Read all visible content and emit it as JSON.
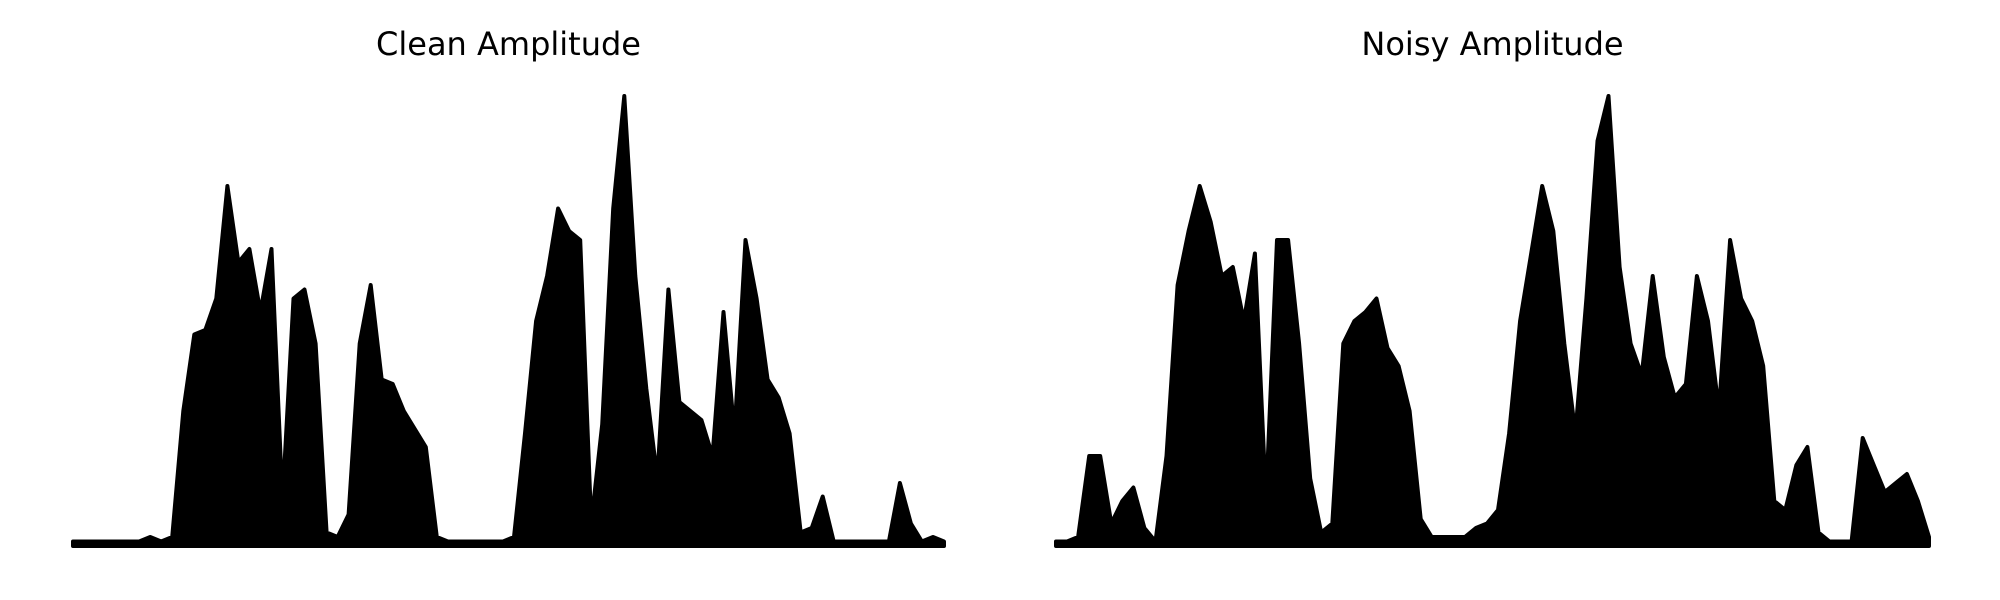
{
  "chart_data": [
    {
      "type": "area",
      "title": "Clean Amplitude",
      "color": "#000000",
      "ylim": [
        0,
        1
      ],
      "values": [
        0.01,
        0.01,
        0.01,
        0.01,
        0.01,
        0.01,
        0.01,
        0.02,
        0.01,
        0.02,
        0.3,
        0.47,
        0.48,
        0.55,
        0.8,
        0.63,
        0.66,
        0.52,
        0.66,
        0.1,
        0.55,
        0.57,
        0.45,
        0.03,
        0.02,
        0.07,
        0.45,
        0.58,
        0.37,
        0.36,
        0.3,
        0.26,
        0.22,
        0.02,
        0.01,
        0.01,
        0.01,
        0.01,
        0.01,
        0.01,
        0.02,
        0.25,
        0.5,
        0.6,
        0.75,
        0.7,
        0.68,
        0.05,
        0.27,
        0.75,
        1.0,
        0.6,
        0.35,
        0.15,
        0.57,
        0.32,
        0.3,
        0.28,
        0.2,
        0.52,
        0.25,
        0.68,
        0.55,
        0.37,
        0.33,
        0.25,
        0.03,
        0.04,
        0.11,
        0.01,
        0.01,
        0.01,
        0.01,
        0.01,
        0.01,
        0.14,
        0.05,
        0.01,
        0.02,
        0.01
      ]
    },
    {
      "type": "area",
      "title": "Noisy Amplitude",
      "color": "#000000",
      "ylim": [
        0,
        1
      ],
      "values": [
        0.01,
        0.01,
        0.02,
        0.2,
        0.2,
        0.05,
        0.1,
        0.13,
        0.04,
        0.01,
        0.2,
        0.58,
        0.7,
        0.8,
        0.72,
        0.6,
        0.62,
        0.5,
        0.65,
        0.1,
        0.68,
        0.68,
        0.45,
        0.15,
        0.03,
        0.05,
        0.45,
        0.5,
        0.52,
        0.55,
        0.44,
        0.4,
        0.3,
        0.06,
        0.02,
        0.02,
        0.02,
        0.02,
        0.04,
        0.05,
        0.08,
        0.25,
        0.5,
        0.65,
        0.8,
        0.7,
        0.45,
        0.25,
        0.55,
        0.9,
        1.0,
        0.62,
        0.45,
        0.38,
        0.6,
        0.42,
        0.33,
        0.36,
        0.6,
        0.5,
        0.3,
        0.68,
        0.55,
        0.5,
        0.4,
        0.1,
        0.08,
        0.18,
        0.22,
        0.03,
        0.01,
        0.01,
        0.01,
        0.24,
        0.18,
        0.12,
        0.14,
        0.16,
        0.1,
        0.02
      ]
    }
  ]
}
